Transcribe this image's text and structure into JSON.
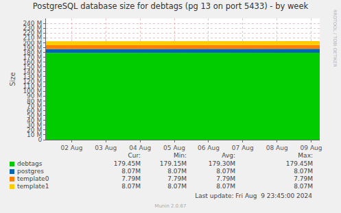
{
  "chart_data": {
    "type": "area",
    "title": "PostgreSQL database size for debtags (pg 13 on port 5433) - by week",
    "y_label": "Size",
    "stacked": true,
    "grid": true,
    "categories": [
      null,
      null,
      null,
      "02 Aug",
      null,
      null,
      null,
      "03 Aug",
      null,
      null,
      null,
      "04 Aug",
      null,
      null,
      null,
      "05 Aug",
      null,
      null,
      null,
      "06 Aug",
      null,
      null,
      null,
      "07 Aug",
      null,
      null,
      null,
      "08 Aug",
      null,
      null,
      null,
      "09 Aug",
      null
    ],
    "ylim": [
      0,
      250
    ],
    "yticks": [
      0,
      {
        "value": 10,
        "label": "10 M"
      },
      {
        "value": 20,
        "label": "20 M"
      },
      {
        "value": 30,
        "label": "30 M"
      },
      {
        "value": 40,
        "label": "40 M"
      },
      {
        "value": 50,
        "label": "50 M"
      },
      {
        "value": 60,
        "label": "60 M"
      },
      {
        "value": 70,
        "label": "70 M"
      },
      {
        "value": 80,
        "label": "80 M"
      },
      {
        "value": 90,
        "label": "90 M"
      },
      {
        "value": 100,
        "label": "100 M"
      },
      {
        "value": 110,
        "label": "110 M"
      },
      {
        "value": 120,
        "label": "120 M"
      },
      {
        "value": 130,
        "label": "130 M"
      },
      {
        "value": 140,
        "label": "140 M"
      },
      {
        "value": 150,
        "label": "150 M"
      },
      {
        "value": 160,
        "label": "160 M"
      },
      {
        "value": 170,
        "label": "170 M"
      },
      {
        "value": 180,
        "label": "180 M"
      },
      {
        "value": 190,
        "label": "190 M"
      },
      {
        "value": 200,
        "label": "200 M"
      },
      {
        "value": 210,
        "label": "210 M"
      },
      {
        "value": 220,
        "label": "220 M"
      },
      {
        "value": 230,
        "label": "230 M"
      },
      {
        "value": 240,
        "label": "240 M"
      }
    ],
    "summary_columns": [
      "Cur:",
      "Min:",
      "Avg:",
      "Max:"
    ],
    "series": [
      {
        "name": "debtags",
        "color": "#00cc00",
        "values": [
          179.15,
          179.15,
          179.15,
          179.15,
          179.15,
          179.15,
          179.15,
          179.15,
          179.15,
          179.15,
          179.15,
          179.15,
          179.15,
          179.15,
          179.15,
          179.15,
          179.15,
          179.15,
          179.15,
          179.15,
          179.15,
          179.45,
          179.45,
          179.45,
          179.45,
          179.45,
          179.45,
          179.45,
          179.45,
          179.45,
          179.45,
          179.45,
          179.45
        ],
        "summary": [
          "179.45M",
          "179.15M",
          "179.30M",
          "179.45M"
        ]
      },
      {
        "name": "postgres",
        "color": "#0066b3",
        "values": [
          8.07,
          8.07,
          8.07,
          8.07,
          8.07,
          8.07,
          8.07,
          8.07,
          8.07,
          8.07,
          8.07,
          8.07,
          8.07,
          8.07,
          8.07,
          8.07,
          8.07,
          8.07,
          8.07,
          8.07,
          8.07,
          8.07,
          8.07,
          8.07,
          8.07,
          8.07,
          8.07,
          8.07,
          8.07,
          8.07,
          8.07,
          8.07,
          8.07
        ],
        "summary": [
          "8.07M",
          "8.07M",
          "8.07M",
          "8.07M"
        ]
      },
      {
        "name": "template0",
        "color": "#ff8000",
        "values": [
          7.79,
          7.79,
          7.79,
          7.79,
          7.79,
          7.79,
          7.79,
          7.79,
          7.79,
          7.79,
          7.79,
          7.79,
          7.79,
          7.79,
          7.79,
          7.79,
          7.79,
          7.79,
          7.79,
          7.79,
          7.79,
          7.79,
          7.79,
          7.79,
          7.79,
          7.79,
          7.79,
          7.79,
          7.79,
          7.79,
          7.79,
          7.79,
          7.79
        ],
        "summary": [
          "7.79M",
          "7.79M",
          "7.79M",
          "7.79M"
        ]
      },
      {
        "name": "template1",
        "color": "#ffcc00",
        "values": [
          8.07,
          8.07,
          8.07,
          8.07,
          8.07,
          8.07,
          8.07,
          8.07,
          8.07,
          8.07,
          8.07,
          8.07,
          8.07,
          8.07,
          8.07,
          8.07,
          8.07,
          8.07,
          8.07,
          8.07,
          8.07,
          8.07,
          8.07,
          8.07,
          8.07,
          8.07,
          8.07,
          8.07,
          8.07,
          8.07,
          8.07,
          8.07,
          8.07
        ],
        "summary": [
          "8.07M",
          "8.07M",
          "8.07M",
          "8.07M"
        ]
      }
    ],
    "footer": "Last update: Fri Aug  9 23:45:00 2024",
    "credit": "Munin 2.0.67",
    "watermark": "RRDTOOL / TOBI OETIKER"
  }
}
